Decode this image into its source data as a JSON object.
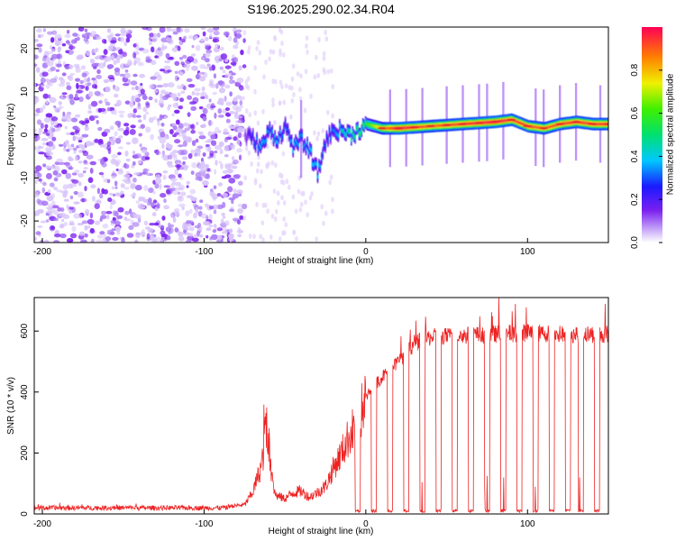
{
  "title": "S196.2025.290.02.34.R04",
  "colors": {
    "snr_line": "#ee2222",
    "ridge_strong": "#e8262a",
    "noise": "#7a1ff0"
  },
  "chart_data": [
    {
      "type": "heatmap",
      "name": "spectrogram",
      "xlabel": "Height of straight line (km)",
      "ylabel": "Frequency (Hz)",
      "xlim": [
        -205,
        150
      ],
      "ylim": [
        -25,
        25
      ],
      "xticks": [
        -200,
        -100,
        0,
        100
      ],
      "xtick_labels": [
        "-200",
        "-100",
        "0",
        "100"
      ],
      "yticks": [
        -20,
        -10,
        0,
        10,
        20
      ],
      "ytick_labels": [
        "-20",
        "-10",
        "0",
        "10",
        "20"
      ],
      "colorbar": {
        "label": "Normalized spectral amplitude",
        "range": [
          0,
          1
        ],
        "ticks": [
          0,
          0.2,
          0.4,
          0.6,
          0.8
        ],
        "tick_labels": [
          "0.0",
          "0.2",
          "0.4",
          "0.6",
          "0.8"
        ],
        "colormap": "rainbow"
      },
      "noise_region": {
        "x_range": [
          -205,
          -75
        ],
        "y_range": [
          -25,
          25
        ],
        "amplitude": 0.05
      },
      "ridge": {
        "x": [
          -75,
          -70,
          -65,
          -60,
          -55,
          -50,
          -45,
          -40,
          -35,
          -30,
          -25,
          -20,
          -15,
          -10,
          -5,
          0,
          10,
          20,
          40,
          60,
          80,
          90,
          100,
          110,
          120,
          130,
          140,
          150
        ],
        "y": [
          0,
          -1,
          -3,
          1,
          -1,
          2,
          -3,
          -1,
          -4,
          -9,
          -1,
          1,
          1,
          0,
          1,
          2.5,
          1.5,
          1.5,
          2,
          2.5,
          3,
          3.5,
          2,
          1.5,
          2.5,
          3,
          2.5,
          2.5
        ],
        "amp": [
          0.05,
          0.2,
          0.3,
          0.25,
          0.3,
          0.2,
          0.3,
          0.25,
          0.3,
          0.3,
          0.2,
          0.25,
          0.35,
          0.4,
          0.45,
          0.5,
          0.75,
          0.9,
          0.8,
          0.85,
          0.9,
          0.85,
          0.85,
          0.8,
          0.85,
          0.85,
          0.85,
          0.85
        ]
      },
      "spikes_x": [
        -40,
        15,
        25,
        35,
        50,
        60,
        70,
        75,
        85,
        105,
        110,
        120,
        130,
        145
      ]
    },
    {
      "type": "line",
      "name": "snr",
      "xlabel": "Height of straight line (km)",
      "ylabel": "SNR (10 * v/v)",
      "xlim": [
        -205,
        150
      ],
      "ylim": [
        0,
        710
      ],
      "xticks": [
        -200,
        -100,
        0,
        100
      ],
      "xtick_labels": [
        "-200",
        "-100",
        "0",
        "100"
      ],
      "yticks": [
        0,
        200,
        400,
        600
      ],
      "ytick_labels": [
        "0",
        "200",
        "400",
        "600"
      ],
      "baseline": {
        "x": [
          -205,
          -85
        ],
        "y": [
          20,
          20
        ]
      },
      "envelope": {
        "x": [
          -85,
          -75,
          -70,
          -65,
          -62,
          -58,
          -55,
          -50,
          -45,
          -40,
          -35,
          -30,
          -25,
          -20,
          -15,
          -10,
          -5,
          0,
          5,
          10,
          15,
          20,
          25,
          30,
          35,
          40,
          60,
          80,
          100,
          120,
          140,
          150
        ],
        "y": [
          25,
          30,
          70,
          150,
          230,
          80,
          60,
          50,
          70,
          75,
          55,
          70,
          90,
          150,
          200,
          260,
          300,
          380,
          420,
          450,
          470,
          500,
          530,
          560,
          570,
          580,
          585,
          590,
          595,
          590,
          590,
          590
        ]
      },
      "peaks": {
        "x": [
          -62,
          -61,
          -60,
          -58
        ],
        "y": [
          250,
          360,
          290,
          200
        ]
      },
      "dropouts_x": [
        -5,
        5,
        15,
        25,
        35,
        45,
        55,
        65,
        75,
        85,
        95,
        105,
        115,
        125,
        133,
        143
      ],
      "dropout_width": 3
    }
  ]
}
